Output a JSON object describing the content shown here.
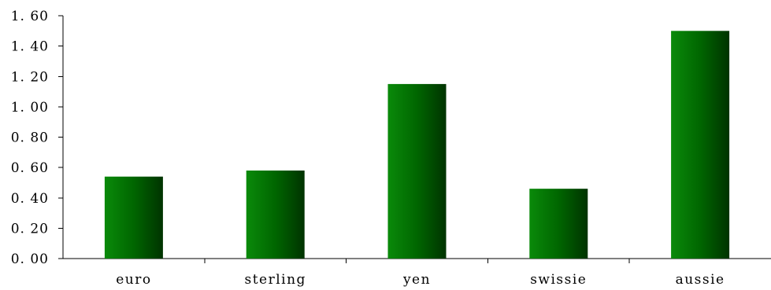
{
  "chart_data": {
    "type": "bar",
    "categories": [
      "euro",
      "sterling",
      "yen",
      "swissie",
      "aussie"
    ],
    "values": [
      0.54,
      0.58,
      1.15,
      0.46,
      1.5
    ],
    "title": "",
    "xlabel": "",
    "ylabel": "",
    "ylim": [
      0,
      1.6
    ],
    "yticks": [
      "0. 00",
      "0. 20",
      "0. 40",
      "0. 60",
      "0. 80",
      "1. 00",
      "1. 20",
      "1. 40",
      "1. 60"
    ],
    "grid": false,
    "legend": "none",
    "colors": {
      "bar_light": "#0a8a0a",
      "bar_mid": "#006600",
      "bar_dark": "#003300",
      "axis": "#000000"
    }
  }
}
